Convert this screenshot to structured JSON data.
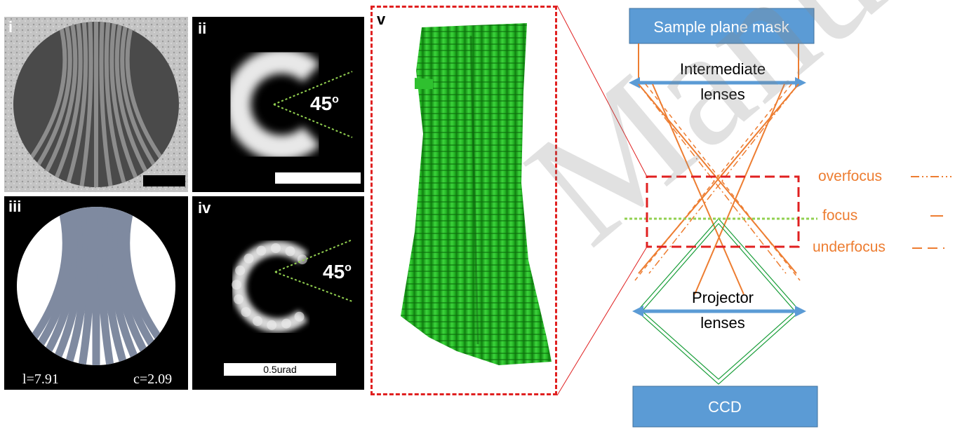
{
  "panels": {
    "i": {
      "label": "i"
    },
    "ii": {
      "label": "ii",
      "angle": "45",
      "angle_unit": "o"
    },
    "iii": {
      "label": "iii",
      "param_l": "l=7.91",
      "param_c": "c=2.09"
    },
    "iv": {
      "label": "iv",
      "angle": "45",
      "angle_unit": "o",
      "scalebar": "0.5urad"
    },
    "v": {
      "label": "v"
    }
  },
  "diagram": {
    "sample_mask": "Sample plane mask",
    "intermediate_line1": "Intermediate",
    "intermediate_line2": "lenses",
    "projector_line1": "Projector",
    "projector_line2": "lenses",
    "ccd": "CCD",
    "legend": {
      "overfocus": "overfocus",
      "focus": "focus",
      "underfocus": "underfocus"
    }
  },
  "watermark": "Manuscript",
  "colors": {
    "box_fill": "#5b9bd5",
    "orange": "#ed7d31",
    "green": "#1a9e3a",
    "focus_line": "#92d050",
    "red_dash": "#e02020",
    "fringe_gray": "#7f8aa0"
  }
}
